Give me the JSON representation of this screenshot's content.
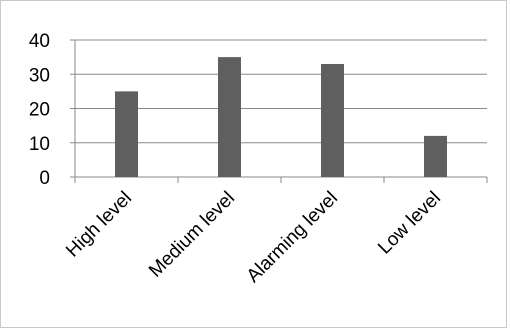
{
  "chart_data": {
    "type": "bar",
    "categories": [
      "High level",
      "Medium level",
      "Alarming level",
      "Low level"
    ],
    "values": [
      25,
      35,
      33,
      12
    ],
    "title": "",
    "xlabel": "",
    "ylabel": "",
    "ylim": [
      0,
      40
    ],
    "yticks": [
      0,
      10,
      20,
      30,
      40
    ],
    "grid": true,
    "legend": "none",
    "bar_color": "#5f5f5f",
    "grid_color": "#8a8a8a"
  }
}
